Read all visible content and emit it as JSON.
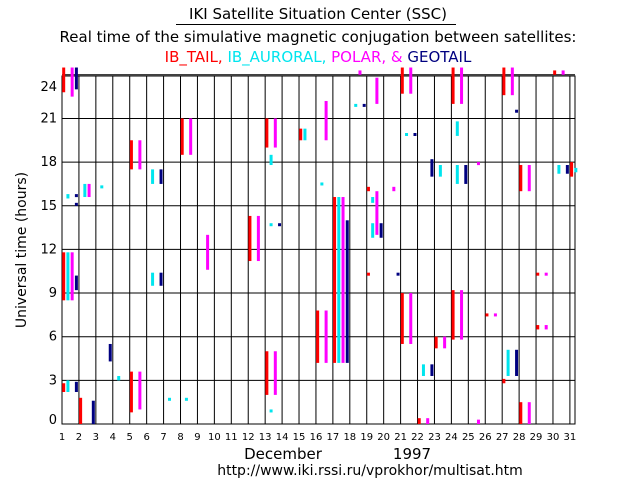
{
  "header": {
    "title": "IKI Satellite Situation Center (SSC)",
    "subtitle": "Real time of the simulative magnetic conjugation between satellites:",
    "legend": [
      {
        "name": "IB_TAIL",
        "color": "#ff0000",
        "sep": ", "
      },
      {
        "name": "IB_AURORAL",
        "color": "#00e5ee",
        "sep": ", "
      },
      {
        "name": "POLAR",
        "color": "#ff00ff",
        "sep": ", & "
      },
      {
        "name": "GEOTAIL",
        "color": "#000080",
        "sep": ""
      }
    ]
  },
  "footer": {
    "month": "December",
    "year": "1997",
    "url": "http://www.iki.rssi.ru/vprokhor/multisat.htm"
  },
  "chart_data": {
    "type": "scatter",
    "title": "Real time of the simulative magnetic conjugation between satellites",
    "xlabel": "December 1997",
    "ylabel": "Universal time (hours)",
    "xlim": [
      1,
      32
    ],
    "ylim": [
      0,
      24
    ],
    "xticks": [
      1,
      2,
      3,
      4,
      5,
      6,
      7,
      8,
      9,
      10,
      11,
      12,
      13,
      14,
      15,
      16,
      17,
      18,
      19,
      20,
      21,
      22,
      23,
      24,
      25,
      26,
      27,
      28,
      29,
      30,
      31
    ],
    "yticks": [
      0,
      3,
      6,
      9,
      12,
      15,
      18,
      21,
      24
    ],
    "grid": true,
    "series": [
      {
        "name": "IB_TAIL",
        "color": "#ff0000",
        "offset": 0.1,
        "segments": [
          [
            1,
            22.8,
            24.5
          ],
          [
            1,
            8.5,
            11.8
          ],
          [
            1,
            2.2,
            2.8
          ],
          [
            2,
            0,
            1.8
          ],
          [
            5,
            0.8,
            3.6
          ],
          [
            5,
            17.5,
            19.5
          ],
          [
            8,
            18.5,
            21
          ],
          [
            12,
            11.2,
            14.3
          ],
          [
            13,
            2,
            5
          ],
          [
            13,
            19,
            21
          ],
          [
            15,
            19.5,
            20.3
          ],
          [
            16,
            4.2,
            7.8
          ],
          [
            17,
            4.2,
            15.6
          ],
          [
            19,
            16,
            16.3
          ],
          [
            19,
            10.2,
            10.4
          ],
          [
            21,
            5.5,
            9
          ],
          [
            21,
            22.7,
            24.5
          ],
          [
            22,
            0,
            0.4
          ],
          [
            23,
            5.2,
            6
          ],
          [
            24,
            5.8,
            9.2
          ],
          [
            24,
            22,
            24.5
          ],
          [
            26,
            7.4,
            7.6
          ],
          [
            27,
            22.6,
            24.5
          ],
          [
            27,
            2.8,
            3.1
          ],
          [
            28,
            0,
            1.5
          ],
          [
            28,
            16,
            17.8
          ],
          [
            29,
            10.2,
            10.4
          ],
          [
            29,
            6.5,
            6.8
          ],
          [
            30,
            24,
            24.3
          ],
          [
            31,
            17,
            18
          ]
        ]
      },
      {
        "name": "IB_AURORAL",
        "color": "#00e5ee",
        "offset": 0.35,
        "segments": [
          [
            1,
            2.2,
            3
          ],
          [
            1,
            15.5,
            15.8
          ],
          [
            1,
            8.5,
            11.8
          ],
          [
            2,
            15.6,
            16.5
          ],
          [
            3,
            16.2,
            16.4
          ],
          [
            4,
            3,
            3.3
          ],
          [
            6,
            9.5,
            10.4
          ],
          [
            6,
            16.5,
            17.5
          ],
          [
            7,
            1.6,
            1.8
          ],
          [
            8,
            1.6,
            1.8
          ],
          [
            13,
            0.8,
            1
          ],
          [
            13,
            13.6,
            13.8
          ],
          [
            13,
            17.8,
            18.5
          ],
          [
            15,
            19.5,
            20.3
          ],
          [
            16,
            16.4,
            16.6
          ],
          [
            17,
            4.2,
            15.6
          ],
          [
            18,
            21.8,
            22
          ],
          [
            19,
            12.8,
            13.8
          ],
          [
            19,
            15.2,
            15.6
          ],
          [
            21,
            19.8,
            20
          ],
          [
            22,
            3.3,
            4.1
          ],
          [
            23,
            17,
            17.8
          ],
          [
            24,
            19.8,
            20.8
          ],
          [
            24,
            16.5,
            17.8
          ],
          [
            27,
            3.3,
            5.1
          ],
          [
            30,
            17.2,
            17.8
          ],
          [
            31,
            17.3,
            17.6
          ]
        ]
      },
      {
        "name": "POLAR",
        "color": "#ff00ff",
        "offset": 0.6,
        "segments": [
          [
            1,
            8.5,
            11.8
          ],
          [
            1,
            22.5,
            24.5
          ],
          [
            2,
            15.6,
            16.5
          ],
          [
            5,
            1,
            3.6
          ],
          [
            5,
            17.5,
            19.5
          ],
          [
            8,
            18.5,
            21
          ],
          [
            9,
            10.6,
            13
          ],
          [
            12,
            11.2,
            14.3
          ],
          [
            13,
            2,
            5
          ],
          [
            13,
            19,
            21
          ],
          [
            16,
            4.2,
            7.8
          ],
          [
            16,
            19.5,
            22.2
          ],
          [
            17,
            4.2,
            15.6
          ],
          [
            18,
            24,
            24.3
          ],
          [
            19,
            22,
            23.8
          ],
          [
            19,
            13,
            16
          ],
          [
            20,
            16,
            16.3
          ],
          [
            21,
            5.5,
            9
          ],
          [
            21,
            22.7,
            24.5
          ],
          [
            22,
            0,
            0.4
          ],
          [
            23,
            5.2,
            6
          ],
          [
            24,
            5.8,
            9.2
          ],
          [
            24,
            22,
            24.5
          ],
          [
            25,
            0,
            0.3
          ],
          [
            25,
            17.8,
            18
          ],
          [
            26,
            7.4,
            7.6
          ],
          [
            27,
            22.6,
            24.5
          ],
          [
            28,
            0,
            1.5
          ],
          [
            28,
            16,
            17.8
          ],
          [
            29,
            6.5,
            6.8
          ],
          [
            29,
            10.2,
            10.4
          ],
          [
            30,
            24,
            24.3
          ]
        ]
      },
      {
        "name": "GEOTAIL",
        "color": "#000080",
        "offset": 0.85,
        "segments": [
          [
            1,
            23,
            24.5
          ],
          [
            1,
            9.2,
            10.2
          ],
          [
            1,
            15,
            15.2
          ],
          [
            1,
            15.6,
            15.8
          ],
          [
            1,
            2.2,
            2.9
          ],
          [
            2,
            0,
            1.6
          ],
          [
            3,
            4.3,
            5.5
          ],
          [
            6,
            9.5,
            10.4
          ],
          [
            6,
            16.5,
            17.5
          ],
          [
            13,
            13.6,
            13.8
          ],
          [
            17,
            4.2,
            14
          ],
          [
            18,
            21.8,
            22
          ],
          [
            19,
            12.8,
            13.8
          ],
          [
            20,
            10.2,
            10.4
          ],
          [
            21,
            19.8,
            20
          ],
          [
            22,
            3.3,
            4.1
          ],
          [
            22,
            17,
            18.2
          ],
          [
            24,
            16.5,
            17.8
          ],
          [
            27,
            3.3,
            5.1
          ],
          [
            27,
            21.4,
            21.6
          ],
          [
            30,
            17.2,
            17.8
          ]
        ]
      }
    ]
  }
}
